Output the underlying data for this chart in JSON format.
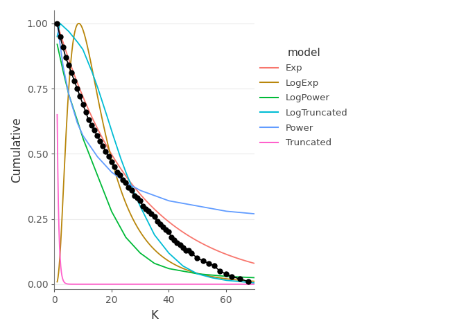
{
  "title": "",
  "xlabel": "K",
  "ylabel": "Cumulative",
  "xlim": [
    0,
    70
  ],
  "ylim": [
    -0.02,
    1.05
  ],
  "background_color": "#ffffff",
  "legend_title": "model",
  "models": {
    "Exp": {
      "color": "#F8766D",
      "lw": 1.3
    },
    "LogExp": {
      "color": "#B8860B",
      "lw": 1.3
    },
    "LogPower": {
      "color": "#00BA38",
      "lw": 1.3
    },
    "LogTruncated": {
      "color": "#00BCD4",
      "lw": 1.3
    },
    "Power": {
      "color": "#619CFF",
      "lw": 1.3
    },
    "Truncated": {
      "color": "#FF61CC",
      "lw": 1.3
    }
  },
  "obs_color": "#000000",
  "obs_marker": "o",
  "obs_ms": 5,
  "obs_lw": 1.2,
  "obs_x": [
    1,
    2,
    3,
    4,
    5,
    6,
    7,
    8,
    9,
    10,
    11,
    12,
    13,
    14,
    15,
    16,
    17,
    18,
    19,
    20,
    21,
    22,
    23,
    24,
    25,
    26,
    27,
    28,
    29,
    30,
    31,
    32,
    33,
    34,
    35,
    36,
    37,
    38,
    39,
    40,
    41,
    42,
    43,
    44,
    45,
    46,
    47,
    48,
    50,
    52,
    54,
    56,
    58,
    60,
    62,
    65,
    68
  ],
  "obs_y": [
    1.0,
    0.95,
    0.91,
    0.87,
    0.84,
    0.81,
    0.78,
    0.75,
    0.72,
    0.69,
    0.66,
    0.63,
    0.61,
    0.59,
    0.57,
    0.55,
    0.53,
    0.51,
    0.49,
    0.47,
    0.45,
    0.43,
    0.42,
    0.4,
    0.39,
    0.37,
    0.36,
    0.34,
    0.33,
    0.32,
    0.3,
    0.29,
    0.28,
    0.27,
    0.26,
    0.24,
    0.23,
    0.22,
    0.21,
    0.2,
    0.18,
    0.17,
    0.16,
    0.15,
    0.14,
    0.13,
    0.13,
    0.12,
    0.1,
    0.09,
    0.08,
    0.07,
    0.05,
    0.04,
    0.03,
    0.02,
    0.01
  ]
}
